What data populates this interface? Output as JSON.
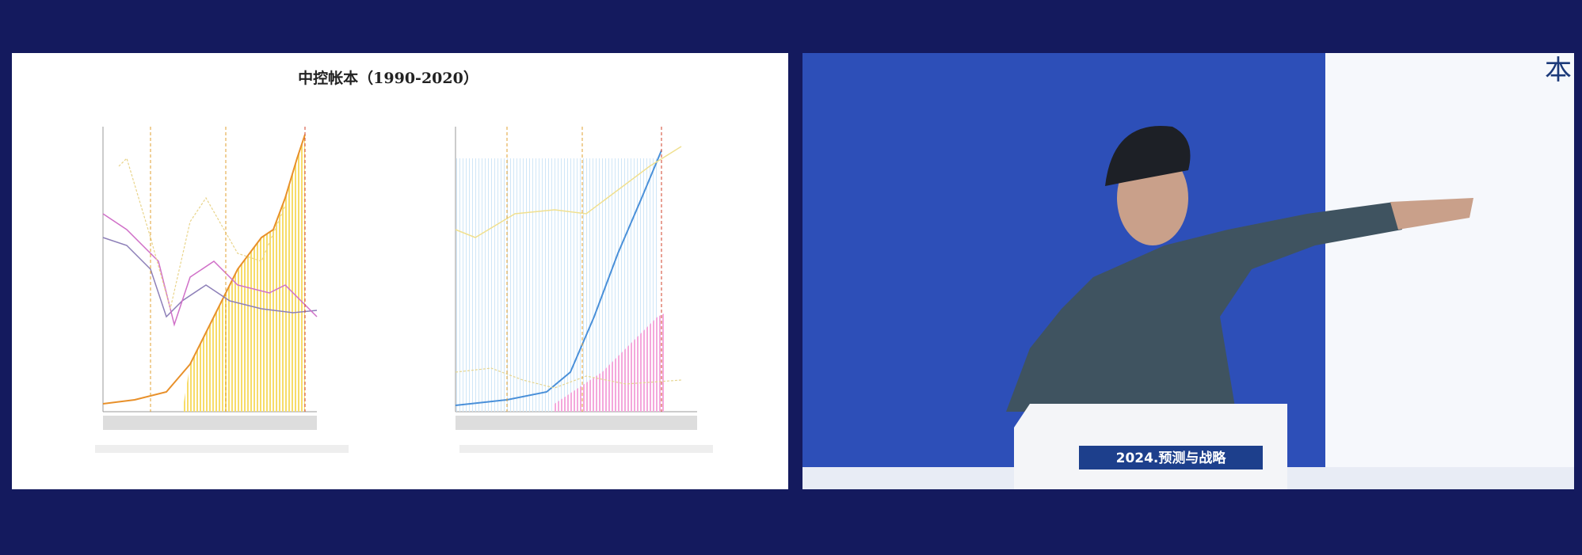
{
  "slide": {
    "title": "中控帐本（1990-2020）"
  },
  "video": {
    "podium_banner": "2024.预测与战略",
    "screen_text": "本"
  }
}
